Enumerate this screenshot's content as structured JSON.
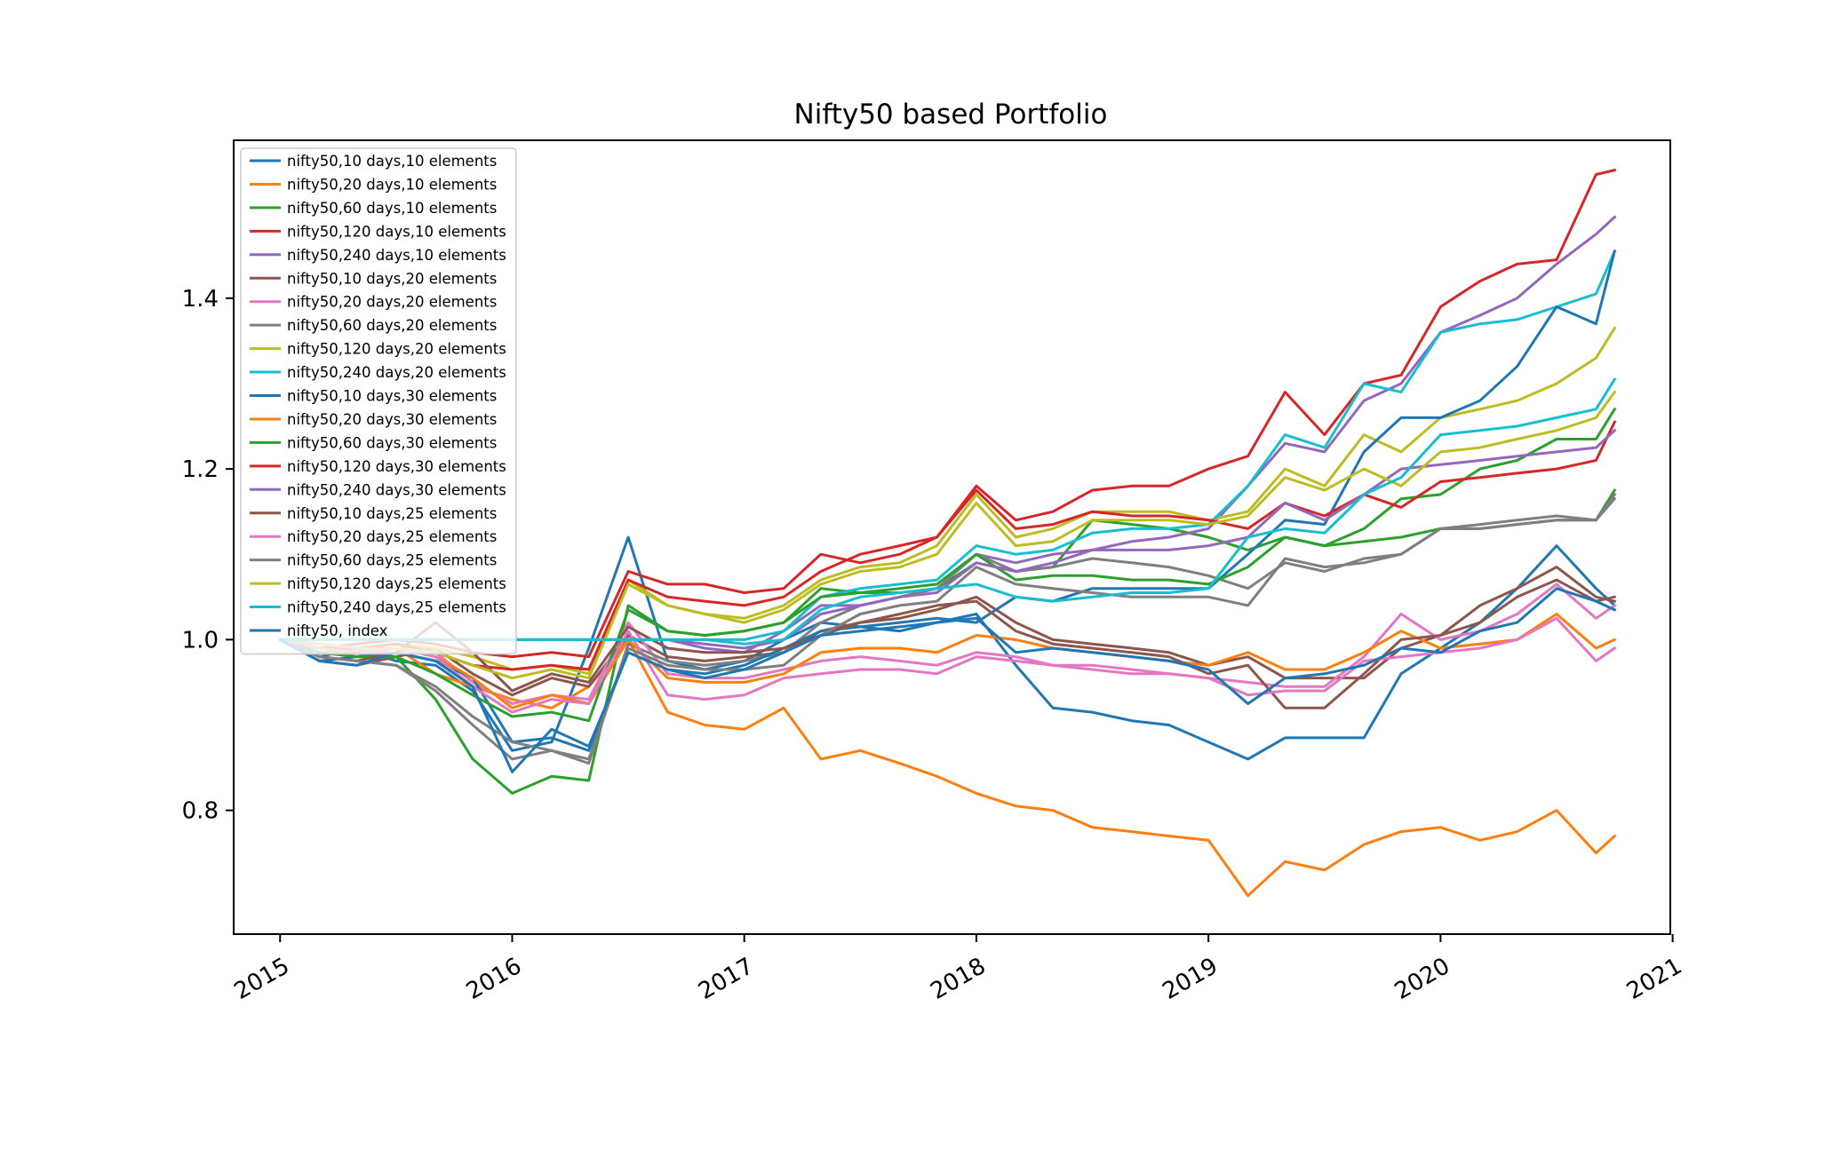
{
  "chart_data": {
    "type": "line",
    "title": "Nifty50 based Portfolio",
    "xlabel": "",
    "ylabel": "",
    "xlim": [
      2014.8,
      2020.99
    ],
    "ylim": [
      0.655,
      1.585
    ],
    "xticks": [
      2015,
      2016,
      2017,
      2018,
      2019,
      2020,
      2021
    ],
    "xtick_labels": [
      "2015",
      "2016",
      "2017",
      "2018",
      "2019",
      "2020",
      "2021"
    ],
    "yticks": [
      0.8,
      1.0,
      1.2,
      1.4
    ],
    "ytick_labels": [
      "0.8",
      "1.0",
      "1.2",
      "1.4"
    ],
    "grid": false,
    "legend_position": "upper left",
    "x": [
      2015.0,
      2015.17,
      2015.33,
      2015.5,
      2015.67,
      2015.83,
      2016.0,
      2016.17,
      2016.33,
      2016.5,
      2016.67,
      2016.83,
      2017.0,
      2017.17,
      2017.33,
      2017.5,
      2017.67,
      2017.83,
      2018.0,
      2018.17,
      2018.33,
      2018.5,
      2018.67,
      2018.83,
      2019.0,
      2019.17,
      2019.33,
      2019.5,
      2019.67,
      2019.83,
      2020.0,
      2020.17,
      2020.33,
      2020.5,
      2020.67,
      2020.75
    ],
    "series": [
      {
        "name": "nifty50,10 days,10 elements",
        "color": "#1f77b4",
        "values": [
          1.0,
          0.98,
          0.99,
          0.975,
          0.97,
          0.94,
          0.87,
          0.88,
          0.99,
          1.12,
          0.975,
          0.965,
          0.975,
          1.0,
          1.02,
          1.015,
          1.01,
          1.02,
          1.03,
          0.97,
          0.92,
          0.915,
          0.905,
          0.9,
          0.88,
          0.86,
          0.885,
          0.885,
          0.885,
          0.96,
          0.99,
          1.02,
          1.06,
          1.11,
          1.06,
          1.04
        ]
      },
      {
        "name": "nifty50,20 days,10 elements",
        "color": "#ff7f0e",
        "values": [
          1.0,
          0.99,
          0.98,
          0.99,
          0.96,
          0.945,
          0.93,
          0.92,
          0.945,
          1.0,
          0.915,
          0.9,
          0.895,
          0.92,
          0.86,
          0.87,
          0.855,
          0.84,
          0.82,
          0.805,
          0.8,
          0.78,
          0.775,
          0.77,
          0.765,
          0.7,
          0.74,
          0.73,
          0.76,
          0.775,
          0.78,
          0.765,
          0.775,
          0.8,
          0.75,
          0.77
        ]
      },
      {
        "name": "nifty50,60 days,10 elements",
        "color": "#2ca02c",
        "values": [
          1.0,
          0.985,
          0.98,
          0.98,
          0.93,
          0.86,
          0.82,
          0.84,
          0.835,
          1.04,
          1.01,
          1.005,
          1.01,
          1.02,
          1.06,
          1.055,
          1.055,
          1.06,
          1.09,
          1.08,
          1.085,
          1.14,
          1.135,
          1.13,
          1.12,
          1.105,
          1.12,
          1.11,
          1.115,
          1.12,
          1.13,
          1.13,
          1.135,
          1.14,
          1.14,
          1.175
        ]
      },
      {
        "name": "nifty50,120 days,10 elements",
        "color": "#d62728",
        "values": [
          1.0,
          0.99,
          0.995,
          1.0,
          0.995,
          0.985,
          0.98,
          0.985,
          0.98,
          1.08,
          1.065,
          1.065,
          1.055,
          1.06,
          1.1,
          1.09,
          1.1,
          1.12,
          1.18,
          1.14,
          1.15,
          1.175,
          1.18,
          1.18,
          1.2,
          1.215,
          1.29,
          1.24,
          1.3,
          1.31,
          1.39,
          1.42,
          1.44,
          1.445,
          1.545,
          1.55
        ]
      },
      {
        "name": "nifty50,240 days,10 elements",
        "color": "#9467bd",
        "values": [
          1.0,
          1.0,
          1.0,
          1.0,
          1.0,
          1.0,
          1.0,
          1.0,
          1.0,
          1.0,
          1.0,
          0.99,
          0.985,
          1.01,
          1.04,
          1.04,
          1.05,
          1.06,
          1.1,
          1.09,
          1.1,
          1.105,
          1.115,
          1.12,
          1.13,
          1.18,
          1.23,
          1.22,
          1.28,
          1.3,
          1.36,
          1.38,
          1.4,
          1.44,
          1.475,
          1.495
        ]
      },
      {
        "name": "nifty50,10 days,20 elements",
        "color": "#8c564b",
        "values": [
          1.0,
          0.975,
          0.97,
          0.98,
          0.99,
          0.96,
          0.935,
          0.955,
          0.945,
          1.005,
          0.98,
          0.975,
          0.98,
          0.985,
          1.01,
          1.02,
          1.025,
          1.035,
          1.05,
          1.02,
          1.0,
          0.995,
          0.99,
          0.985,
          0.97,
          0.98,
          0.955,
          0.955,
          0.955,
          0.99,
          1.005,
          1.02,
          1.05,
          1.07,
          1.045,
          1.05
        ]
      },
      {
        "name": "nifty50,20 days,20 elements",
        "color": "#e377c2",
        "values": [
          1.0,
          0.985,
          0.98,
          0.99,
          0.985,
          0.95,
          0.925,
          0.935,
          0.93,
          1.02,
          0.96,
          0.955,
          0.955,
          0.965,
          0.975,
          0.98,
          0.975,
          0.97,
          0.985,
          0.98,
          0.97,
          0.97,
          0.965,
          0.96,
          0.955,
          0.95,
          0.945,
          0.945,
          0.98,
          1.03,
          1.0,
          1.01,
          1.03,
          1.065,
          1.025,
          1.04
        ]
      },
      {
        "name": "nifty50,60 days,20 elements",
        "color": "#7f7f7f",
        "values": [
          1.0,
          0.98,
          0.975,
          0.97,
          0.94,
          0.9,
          0.86,
          0.87,
          0.855,
          0.995,
          0.975,
          0.97,
          0.975,
          0.985,
          1.02,
          1.04,
          1.05,
          1.06,
          1.1,
          1.08,
          1.085,
          1.095,
          1.09,
          1.085,
          1.075,
          1.06,
          1.09,
          1.08,
          1.095,
          1.1,
          1.13,
          1.135,
          1.14,
          1.145,
          1.14,
          1.17
        ]
      },
      {
        "name": "nifty50,120 days,20 elements",
        "color": "#bcbd22",
        "values": [
          1.0,
          0.995,
          0.99,
          0.995,
          0.99,
          0.98,
          0.965,
          0.97,
          0.96,
          1.07,
          1.04,
          1.03,
          1.025,
          1.04,
          1.07,
          1.085,
          1.09,
          1.11,
          1.17,
          1.12,
          1.13,
          1.15,
          1.15,
          1.15,
          1.14,
          1.15,
          1.2,
          1.18,
          1.24,
          1.22,
          1.26,
          1.27,
          1.28,
          1.3,
          1.33,
          1.365
        ]
      },
      {
        "name": "nifty50,240 days,20 elements",
        "color": "#17becf",
        "values": [
          1.0,
          1.0,
          1.0,
          1.0,
          1.0,
          1.0,
          1.0,
          1.0,
          1.0,
          1.0,
          1.0,
          1.0,
          1.0,
          1.01,
          1.05,
          1.06,
          1.065,
          1.07,
          1.11,
          1.1,
          1.105,
          1.125,
          1.13,
          1.13,
          1.135,
          1.18,
          1.24,
          1.225,
          1.3,
          1.29,
          1.36,
          1.37,
          1.375,
          1.39,
          1.405,
          1.455
        ]
      },
      {
        "name": "nifty50,10 days,30 elements",
        "color": "#1f77b4",
        "values": [
          1.0,
          0.975,
          0.98,
          0.985,
          0.975,
          0.955,
          0.88,
          0.885,
          0.87,
          0.985,
          0.965,
          0.96,
          0.97,
          0.99,
          1.01,
          1.015,
          1.02,
          1.025,
          1.02,
          1.05,
          1.045,
          1.06,
          1.06,
          1.06,
          1.06,
          1.1,
          1.14,
          1.135,
          1.22,
          1.26,
          1.26,
          1.28,
          1.32,
          1.39,
          1.37,
          1.455
        ]
      },
      {
        "name": "nifty50,20 days,30 elements",
        "color": "#ff7f0e",
        "values": [
          1.0,
          0.985,
          0.985,
          0.99,
          0.98,
          0.955,
          0.92,
          0.935,
          0.925,
          1.0,
          0.955,
          0.95,
          0.95,
          0.96,
          0.985,
          0.99,
          0.99,
          0.985,
          1.005,
          1.0,
          0.99,
          0.985,
          0.98,
          0.975,
          0.97,
          0.985,
          0.965,
          0.965,
          0.985,
          1.01,
          0.99,
          0.995,
          1.0,
          1.03,
          0.99,
          1.0
        ]
      },
      {
        "name": "nifty50,60 days,30 elements",
        "color": "#2ca02c",
        "values": [
          1.0,
          0.985,
          0.98,
          0.98,
          0.96,
          0.935,
          0.91,
          0.915,
          0.905,
          1.035,
          1.01,
          1.005,
          1.01,
          1.02,
          1.05,
          1.055,
          1.06,
          1.065,
          1.1,
          1.07,
          1.075,
          1.075,
          1.07,
          1.07,
          1.065,
          1.085,
          1.12,
          1.11,
          1.13,
          1.165,
          1.17,
          1.2,
          1.21,
          1.235,
          1.235,
          1.27
        ]
      },
      {
        "name": "nifty50,120 days,30 elements",
        "color": "#d62728",
        "values": [
          1.0,
          0.99,
          0.99,
          0.995,
          0.985,
          0.97,
          0.965,
          0.97,
          0.965,
          1.07,
          1.05,
          1.045,
          1.04,
          1.05,
          1.08,
          1.1,
          1.11,
          1.12,
          1.175,
          1.13,
          1.135,
          1.15,
          1.145,
          1.145,
          1.14,
          1.13,
          1.16,
          1.145,
          1.17,
          1.155,
          1.185,
          1.19,
          1.195,
          1.2,
          1.21,
          1.255
        ]
      },
      {
        "name": "nifty50,240 days,30 elements",
        "color": "#9467bd",
        "values": [
          1.0,
          1.0,
          1.0,
          1.0,
          1.0,
          1.0,
          1.0,
          1.0,
          1.0,
          1.0,
          1.0,
          0.995,
          0.99,
          1.0,
          1.03,
          1.04,
          1.05,
          1.055,
          1.09,
          1.08,
          1.09,
          1.105,
          1.105,
          1.105,
          1.11,
          1.12,
          1.16,
          1.14,
          1.17,
          1.2,
          1.205,
          1.21,
          1.215,
          1.22,
          1.225,
          1.245
        ]
      },
      {
        "name": "nifty50,10 days,25 elements",
        "color": "#8c564b",
        "values": [
          1.0,
          0.98,
          0.975,
          0.985,
          1.02,
          0.985,
          0.94,
          0.96,
          0.95,
          1.015,
          0.99,
          0.985,
          0.985,
          0.99,
          1.005,
          1.02,
          1.03,
          1.04,
          1.045,
          1.01,
          0.995,
          0.99,
          0.985,
          0.98,
          0.96,
          0.97,
          0.92,
          0.92,
          0.96,
          1.0,
          1.005,
          1.04,
          1.06,
          1.085,
          1.05,
          1.045
        ]
      },
      {
        "name": "nifty50,20 days,25 elements",
        "color": "#e377c2",
        "values": [
          1.0,
          0.99,
          0.985,
          0.99,
          0.98,
          0.945,
          0.915,
          0.93,
          0.925,
          1.01,
          0.935,
          0.93,
          0.935,
          0.955,
          0.96,
          0.965,
          0.965,
          0.96,
          0.98,
          0.975,
          0.97,
          0.965,
          0.96,
          0.96,
          0.955,
          0.935,
          0.94,
          0.94,
          0.975,
          0.98,
          0.985,
          0.99,
          1.0,
          1.025,
          0.975,
          0.99
        ]
      },
      {
        "name": "nifty50,60 days,25 elements",
        "color": "#7f7f7f",
        "values": [
          1.0,
          0.98,
          0.975,
          0.97,
          0.945,
          0.91,
          0.88,
          0.87,
          0.86,
          0.99,
          0.97,
          0.965,
          0.965,
          0.97,
          1.005,
          1.03,
          1.04,
          1.045,
          1.085,
          1.065,
          1.06,
          1.055,
          1.05,
          1.05,
          1.05,
          1.04,
          1.095,
          1.085,
          1.09,
          1.1,
          1.13,
          1.13,
          1.135,
          1.14,
          1.14,
          1.165
        ]
      },
      {
        "name": "nifty50,120 days,25 elements",
        "color": "#bcbd22",
        "values": [
          1.0,
          0.995,
          0.99,
          0.99,
          0.985,
          0.97,
          0.955,
          0.965,
          0.955,
          1.065,
          1.04,
          1.03,
          1.02,
          1.035,
          1.065,
          1.08,
          1.085,
          1.1,
          1.16,
          1.11,
          1.115,
          1.14,
          1.14,
          1.14,
          1.135,
          1.145,
          1.19,
          1.175,
          1.2,
          1.18,
          1.22,
          1.225,
          1.235,
          1.245,
          1.26,
          1.29
        ]
      },
      {
        "name": "nifty50,240 days,25 elements",
        "color": "#17becf",
        "values": [
          1.0,
          1.0,
          1.0,
          1.0,
          1.0,
          1.0,
          1.0,
          1.0,
          1.0,
          1.0,
          1.0,
          1.0,
          0.995,
          1.0,
          1.035,
          1.05,
          1.055,
          1.06,
          1.065,
          1.05,
          1.045,
          1.05,
          1.055,
          1.055,
          1.06,
          1.12,
          1.13,
          1.125,
          1.17,
          1.19,
          1.24,
          1.245,
          1.25,
          1.26,
          1.27,
          1.305
        ]
      },
      {
        "name": "nifty50, index",
        "color": "#1f77b4",
        "values": [
          1.0,
          0.975,
          0.97,
          0.985,
          0.975,
          0.945,
          0.845,
          0.895,
          0.875,
          0.985,
          0.965,
          0.955,
          0.965,
          0.985,
          1.005,
          1.01,
          1.015,
          1.02,
          1.025,
          0.985,
          0.99,
          0.985,
          0.98,
          0.975,
          0.965,
          0.925,
          0.955,
          0.96,
          0.97,
          0.99,
          0.985,
          1.01,
          1.02,
          1.06,
          1.045,
          1.035
        ]
      }
    ]
  }
}
